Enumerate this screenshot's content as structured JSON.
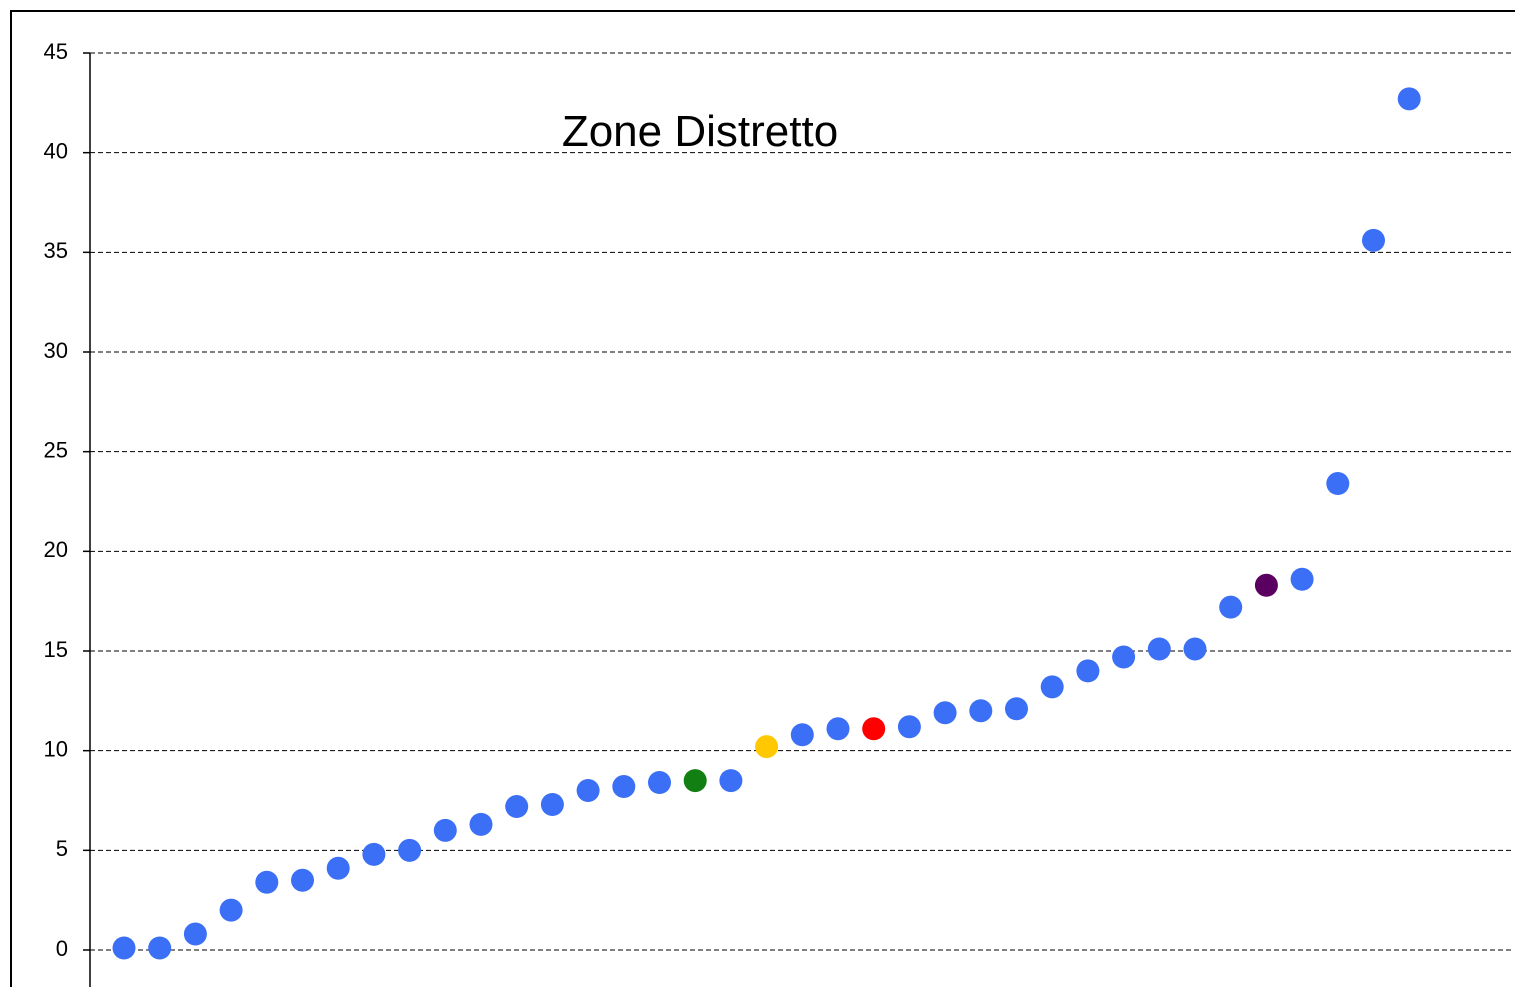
{
  "chart_data": {
    "type": "scatter",
    "title": "Zone Distretto",
    "categories": [
      null,
      null,
      null,
      null,
      null,
      null,
      null,
      null,
      null,
      null,
      null,
      null,
      null,
      null,
      null,
      null,
      null,
      null,
      null,
      null,
      null,
      null,
      null,
      null,
      null,
      null,
      null,
      null,
      null,
      null,
      null,
      null,
      null,
      null,
      null,
      null,
      null
    ],
    "values": [
      0.1,
      0.1,
      0.8,
      2.0,
      3.4,
      3.5,
      4.1,
      4.8,
      5.0,
      6.0,
      6.3,
      7.2,
      7.3,
      8.0,
      8.2,
      8.4,
      8.5,
      8.5,
      10.2,
      10.8,
      11.1,
      11.1,
      11.2,
      11.9,
      12.0,
      12.1,
      13.2,
      14.0,
      14.7,
      15.1,
      15.1,
      17.2,
      18.3,
      18.6,
      23.4,
      35.6,
      42.7
    ],
    "colors": [
      "#3b6ff5",
      "#3b6ff5",
      "#3b6ff5",
      "#3b6ff5",
      "#3b6ff5",
      "#3b6ff5",
      "#3b6ff5",
      "#3b6ff5",
      "#3b6ff5",
      "#3b6ff5",
      "#3b6ff5",
      "#3b6ff5",
      "#3b6ff5",
      "#3b6ff5",
      "#3b6ff5",
      "#3b6ff5",
      "#127f12",
      "#3b6ff5",
      "#ffc800",
      "#3b6ff5",
      "#3b6ff5",
      "#ff0000",
      "#3b6ff5",
      "#3b6ff5",
      "#3b6ff5",
      "#3b6ff5",
      "#3b6ff5",
      "#3b6ff5",
      "#3b6ff5",
      "#3b6ff5",
      "#3b6ff5",
      "#3b6ff5",
      "#5a0060",
      "#3b6ff5",
      "#3b6ff5",
      "#3b6ff5",
      "#3b6ff5"
    ],
    "ylim": [
      0,
      45
    ],
    "yticks": [
      0,
      5,
      10,
      15,
      20,
      25,
      30,
      35,
      40,
      45
    ],
    "grid": true
  }
}
